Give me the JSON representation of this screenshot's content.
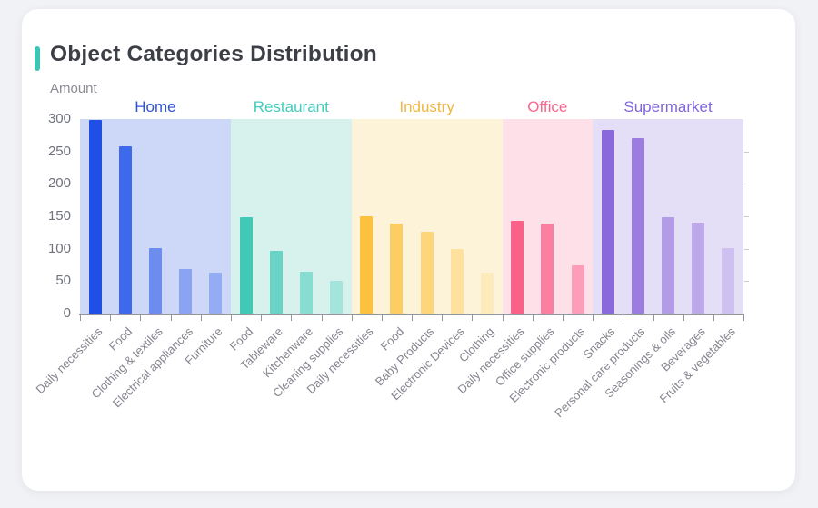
{
  "card": {
    "title": "Object Categories Distribution",
    "accent_color": "#3bc5b5",
    "y_axis_name": "Amount"
  },
  "chart_data": {
    "type": "bar",
    "title": "Object Categories Distribution",
    "ylabel": "Amount",
    "ylim": [
      0,
      300
    ],
    "y_ticks": [
      0,
      50,
      100,
      150,
      200,
      250,
      300
    ],
    "grid": false,
    "legend_position": "grouped-headers-top",
    "groups": [
      {
        "name": "Home",
        "label_color": "#2f54db",
        "band_color": "#cdd7f7",
        "bar_colors": [
          "#1f4fe4",
          "#3d6aeb",
          "#6d8cf0",
          "#8aa3f3",
          "#94acf4"
        ],
        "categories": [
          "Daily necessities",
          "Food",
          "Clothing & textiles",
          "Electrical appliances",
          "Furniture"
        ],
        "values": [
          298,
          258,
          101,
          69,
          63
        ]
      },
      {
        "name": "Restaurant",
        "label_color": "#45cabc",
        "band_color": "#d7f1ed",
        "bar_colors": [
          "#41c8b6",
          "#68d3c6",
          "#87ddd2",
          "#a3e5dd"
        ],
        "categories": [
          "Food",
          "Tableware",
          "Kitchenware",
          "Cleaning supplies"
        ],
        "values": [
          149,
          97,
          65,
          51
        ]
      },
      {
        "name": "Industry",
        "label_color": "#f0b63e",
        "band_color": "#fdf3d8",
        "bar_colors": [
          "#fcc13f",
          "#fccd62",
          "#fdd679",
          "#fde19c",
          "#feebbc"
        ],
        "categories": [
          "Daily necessities",
          "Food",
          "Baby Products",
          "Electronic Devices",
          "Clothing"
        ],
        "values": [
          150,
          139,
          126,
          99,
          63
        ]
      },
      {
        "name": "Office",
        "label_color": "#fa6690",
        "band_color": "#fee0e9",
        "bar_colors": [
          "#fa6189",
          "#fb7fa1",
          "#fc9dba"
        ],
        "categories": [
          "Daily necessities",
          "Office supplies",
          "Electronic products"
        ],
        "values": [
          143,
          139,
          75
        ]
      },
      {
        "name": "Supermarket",
        "label_color": "#8165dd",
        "band_color": "#e4def6",
        "bar_colors": [
          "#8a69dc",
          "#9b7de0",
          "#b29be7",
          "#bda9ea",
          "#cec1f0"
        ],
        "categories": [
          "Snacks",
          "Personal care products",
          "Seasonings & oils",
          "Beverages",
          "Fruits & vegetables"
        ],
        "values": [
          283,
          271,
          149,
          140,
          101
        ]
      }
    ]
  }
}
